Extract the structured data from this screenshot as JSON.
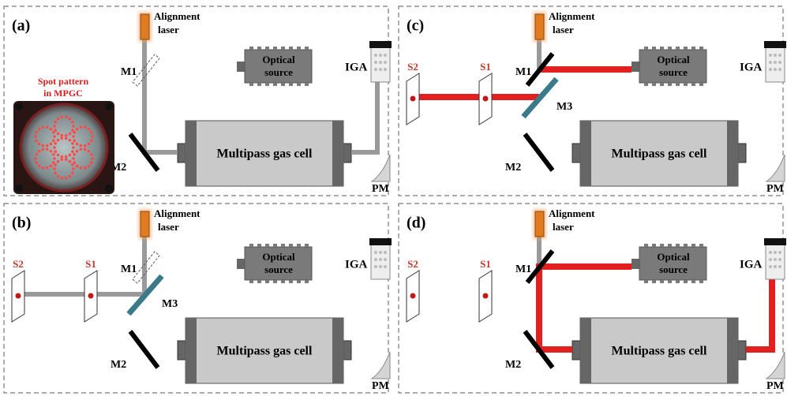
{
  "panels": [
    {
      "label": "(a)",
      "laser": [
        "Alignment",
        "laser"
      ],
      "m1": "M1",
      "m2": "M2",
      "source": [
        "Optical",
        "source"
      ],
      "detector": "IGA",
      "meter": "PM",
      "cell": "Multipass gas cell",
      "inset": [
        "Spot pattern",
        "in MPGC"
      ]
    },
    {
      "label": "(b)",
      "laser": [
        "Alignment",
        "laser"
      ],
      "m1": "M1",
      "m2": "M2",
      "m3": "M3",
      "s1": "S1",
      "s2": "S2",
      "source": [
        "Optical",
        "source"
      ],
      "detector": "IGA",
      "meter": "PM",
      "cell": "Multipass gas cell"
    },
    {
      "label": "(c)",
      "laser": [
        "Alignment",
        "laser"
      ],
      "m1": "M1",
      "m2": "M2",
      "m3": "M3",
      "s1": "S1",
      "s2": "S2",
      "source": [
        "Optical",
        "source"
      ],
      "detector": "IGA",
      "meter": "PM",
      "cell": "Multipass gas cell"
    },
    {
      "label": "(d)",
      "laser": [
        "Alignment",
        "laser"
      ],
      "m1": "M1",
      "m2": "M2",
      "s1": "S1",
      "s2": "S2",
      "source": [
        "Optical",
        "source"
      ],
      "detector": "IGA",
      "meter": "PM",
      "cell": "Multipass gas cell"
    }
  ]
}
